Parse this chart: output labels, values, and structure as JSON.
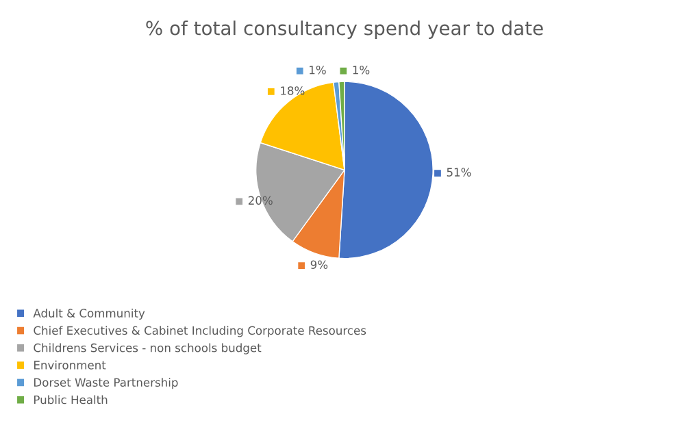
{
  "chart_data": {
    "type": "pie",
    "title": "% of total consultancy spend year to date",
    "categories": [
      "Adult & Community",
      "Chief Executives & Cabinet Including Corporate Resources",
      "Childrens Services - non schools budget",
      "Environment",
      "Dorset Waste Partnership",
      "Public Health"
    ],
    "values": [
      51,
      9,
      20,
      18,
      1,
      1
    ],
    "colors": [
      "#4472c4",
      "#ed7d31",
      "#a5a5a5",
      "#ffc000",
      "#5b9bd5",
      "#70ad47"
    ],
    "value_labels": [
      "51%",
      "9%",
      "20%",
      "18%",
      "1%",
      "1%"
    ],
    "legend": "bottom left"
  }
}
